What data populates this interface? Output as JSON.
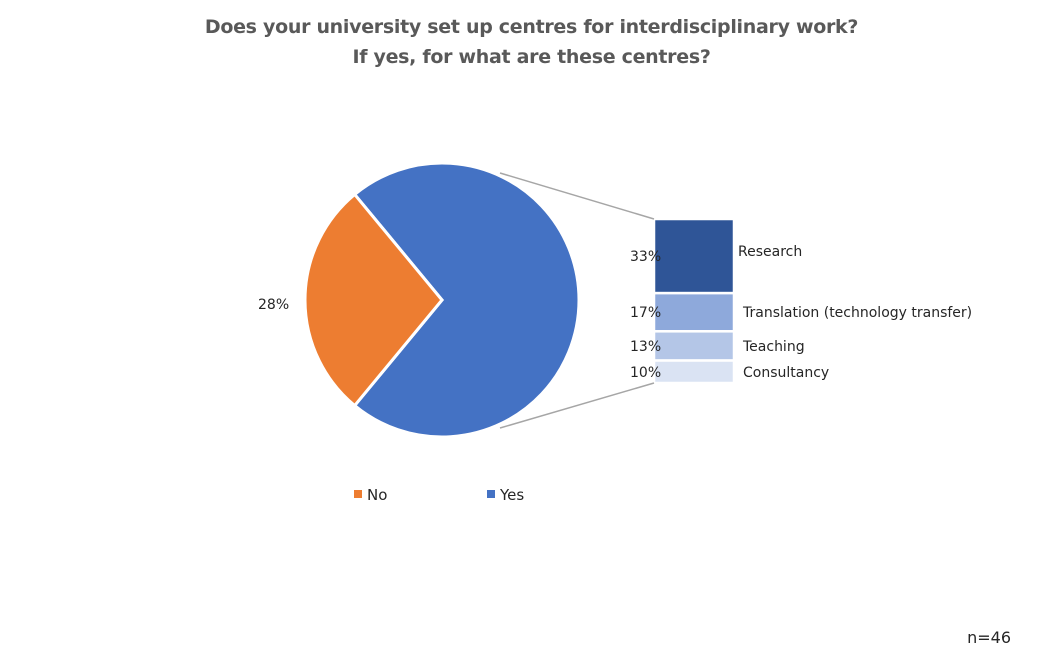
{
  "chart_data": {
    "type": "pie",
    "subtype": "bar-of-pie",
    "title_lines": [
      "Does your university set up centres for interdisciplinary work?",
      "If yes, for what are these centres?"
    ],
    "main_slices": [
      {
        "label": "No",
        "value": 28,
        "value_label": "28%",
        "color": "#ED7D31"
      },
      {
        "label": "Yes",
        "value": 72,
        "value_label": "",
        "color": "#4472C4"
      }
    ],
    "breakdown_of": "Yes",
    "breakdown": [
      {
        "label": "Research",
        "value": 33,
        "value_label": "33%",
        "color": "#2F5597"
      },
      {
        "label": "Translation (technology transfer)",
        "value": 17,
        "value_label": "17%",
        "color": "#8EA9DB"
      },
      {
        "label": "Teaching",
        "value": 13,
        "value_label": "13%",
        "color": "#B4C6E7"
      },
      {
        "label": "Consultancy",
        "value": 10,
        "value_label": "10%",
        "color": "#DAE3F3"
      }
    ],
    "legend": {
      "position": "bottom",
      "entries": [
        "No",
        "Yes"
      ]
    },
    "sample_note": "n=46"
  }
}
